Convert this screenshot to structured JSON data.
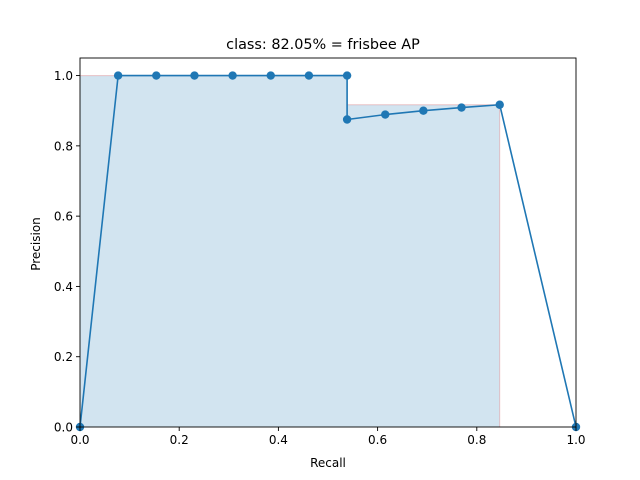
{
  "chart_data": {
    "type": "line",
    "title": "class: 82.05% = frisbee AP",
    "xlabel": "Recall",
    "ylabel": "Precision",
    "xlim": [
      0.0,
      1.0
    ],
    "ylim": [
      0.0,
      1.05
    ],
    "xticks": [
      0.0,
      0.2,
      0.4,
      0.6,
      0.8,
      1.0
    ],
    "yticks": [
      0.0,
      0.2,
      0.4,
      0.6,
      0.8,
      1.0
    ],
    "xtick_labels": [
      "0.0",
      "0.2",
      "0.4",
      "0.6",
      "0.8",
      "1.0"
    ],
    "ytick_labels": [
      "0.0",
      "0.2",
      "0.4",
      "0.6",
      "0.8",
      "1.0"
    ],
    "grid": false,
    "series": [
      {
        "kind": "precision-recall-curve",
        "color": "#1f77b4",
        "marker": "circle",
        "points": [
          [
            0.0,
            0.0
          ],
          [
            0.0769,
            1.0
          ],
          [
            0.1538,
            1.0
          ],
          [
            0.2308,
            1.0
          ],
          [
            0.3077,
            1.0
          ],
          [
            0.3846,
            1.0
          ],
          [
            0.4615,
            1.0
          ],
          [
            0.5385,
            1.0
          ],
          [
            0.5385,
            0.875
          ],
          [
            0.6154,
            0.889
          ],
          [
            0.6923,
            0.9
          ],
          [
            0.7692,
            0.909
          ],
          [
            0.8462,
            0.917
          ],
          [
            1.0,
            0.0
          ]
        ]
      },
      {
        "kind": "interpolated-area",
        "fill_color": "#1f77b4",
        "edge_color": "#d62728",
        "points": [
          [
            0.0,
            1.0
          ],
          [
            0.5385,
            1.0
          ],
          [
            0.5385,
            0.917
          ],
          [
            0.8462,
            0.917
          ],
          [
            0.8462,
            0.0
          ]
        ]
      }
    ]
  }
}
